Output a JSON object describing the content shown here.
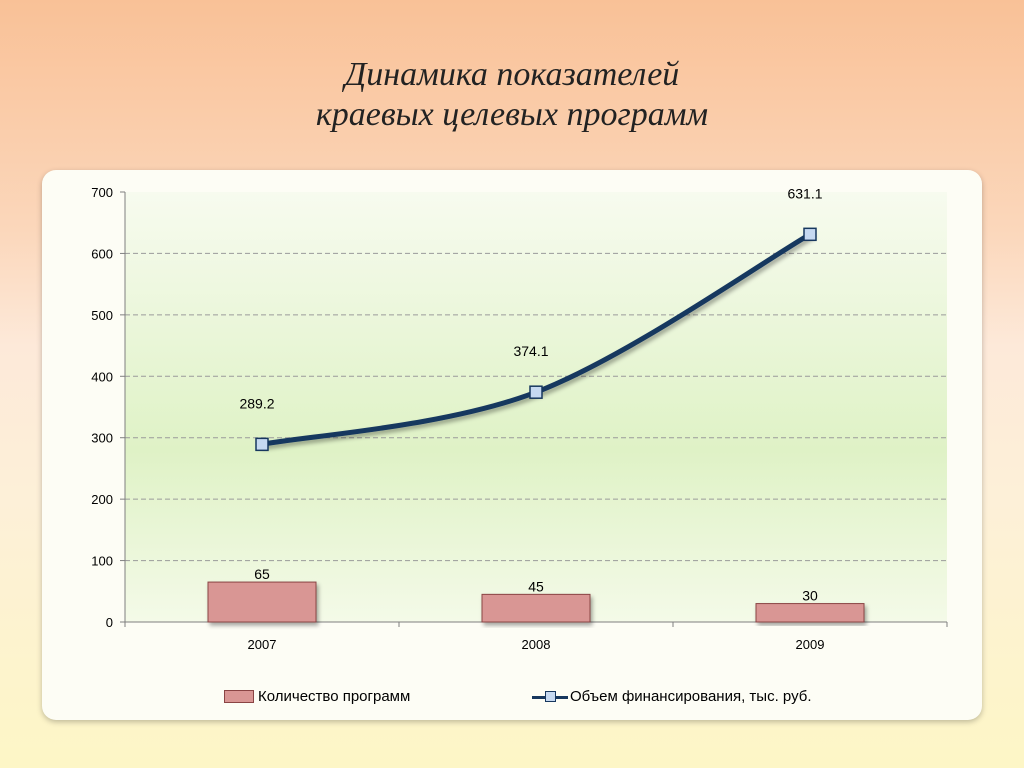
{
  "title_lines": [
    "Динамика показателей",
    "краевых целевых программ"
  ],
  "chart_data": {
    "type": "bar+line",
    "categories": [
      "2007",
      "2008",
      "2009"
    ],
    "series": [
      {
        "name": "Количество программ",
        "type": "bar",
        "values": [
          65,
          45,
          30
        ],
        "color": "#d99694"
      },
      {
        "name": "Объем финансирования, тыс. руб.",
        "type": "line",
        "values": [
          289.2,
          374.1,
          631.1
        ],
        "color": "#17375e",
        "marker_color": "#c6d9f1"
      }
    ],
    "data_labels": {
      "bar": [
        "65",
        "45",
        "30"
      ],
      "line": [
        "289.2",
        "374.1",
        "631.1"
      ]
    },
    "ylim": [
      0,
      700
    ],
    "yticks": [
      0,
      100,
      200,
      300,
      400,
      500,
      600,
      700
    ],
    "grid": true,
    "legend_position": "bottom"
  }
}
